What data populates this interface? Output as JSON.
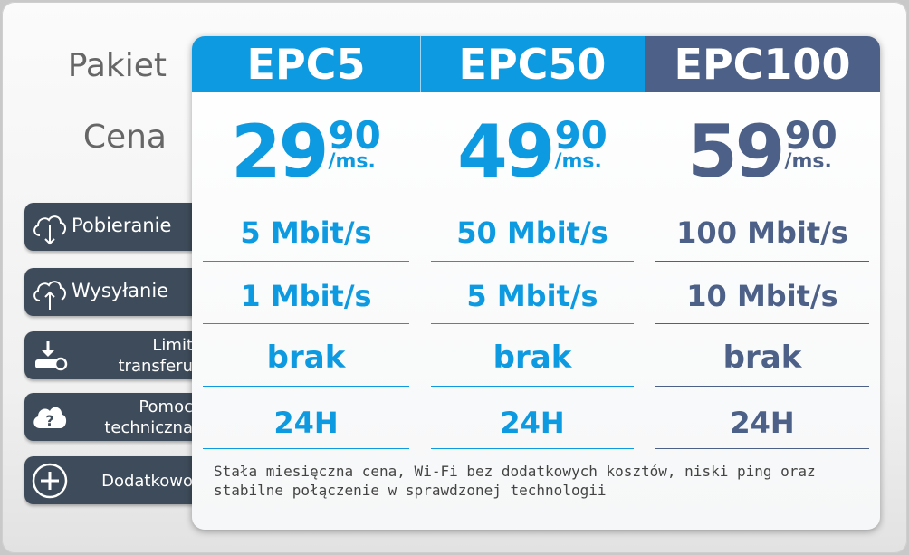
{
  "labels": {
    "pakiet": "Pakiet",
    "cena": "Cena"
  },
  "side": {
    "download": "Pobieranie",
    "upload": "Wysyłanie",
    "limit_line1": "Limit",
    "limit_line2": "transferu",
    "support_line1": "Pomoc",
    "support_line2": "techniczna",
    "extra": "Dodatkowo"
  },
  "plans": [
    {
      "name": "EPC5",
      "price_int": "29",
      "price_frac": "90",
      "per": "/ms.",
      "download": "5 Mbit/s",
      "upload": "1 Mbit/s",
      "limit": "brak",
      "support": "24H",
      "color": "#0e9ae0"
    },
    {
      "name": "EPC50",
      "price_int": "49",
      "price_frac": "90",
      "per": "/ms.",
      "download": "50 Mbit/s",
      "upload": "5 Mbit/s",
      "limit": "brak",
      "support": "24H",
      "color": "#0e9ae0"
    },
    {
      "name": "EPC100",
      "price_int": "59",
      "price_frac": "90",
      "per": "/ms.",
      "download": "100 Mbit/s",
      "upload": "10 Mbit/s",
      "limit": "brak",
      "support": "24H",
      "color": "#4d6188"
    }
  ],
  "note": "Stała miesięczna cena, Wi-Fi bez dodatkowych kosztów, niski ping oraz stabilne połączenie w sprawdzonej technologii",
  "colors": {
    "blue": "#0e9ae0",
    "navy": "#4d6188",
    "button": "#3e4b5a"
  }
}
